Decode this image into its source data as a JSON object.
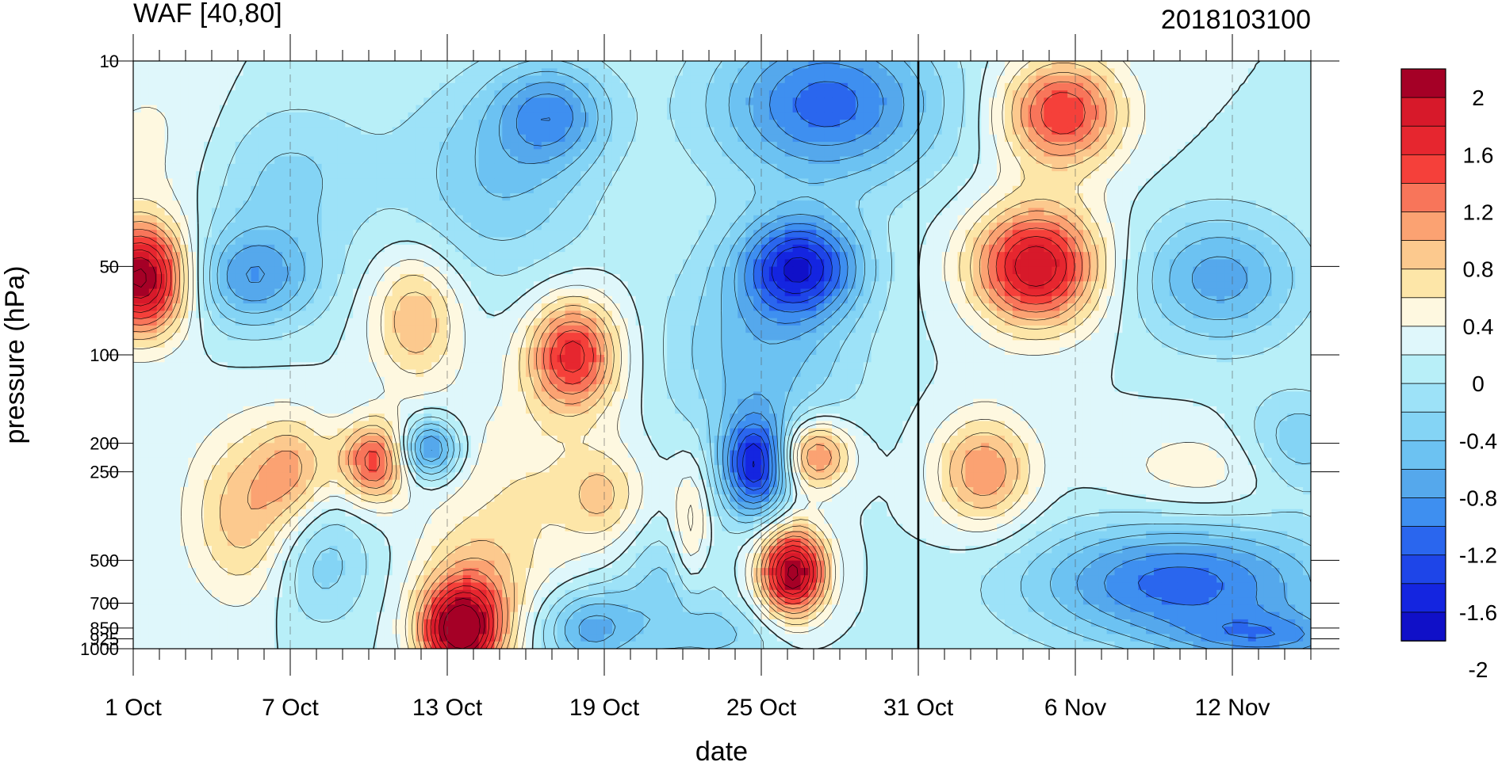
{
  "chart_data": {
    "type": "heatmap",
    "title": "WAF [40,80]",
    "subtitle": "2018103100",
    "xlabel": "date",
    "ylabel": "pressure (hPa)",
    "x_tick_labels": [
      "1 Oct",
      "7 Oct",
      "13 Oct",
      "19 Oct",
      "25 Oct",
      "31 Oct",
      "6 Nov",
      "12 Nov"
    ],
    "x_tick_days": [
      0,
      6,
      12,
      18,
      24,
      30,
      36,
      42
    ],
    "x_range_days": [
      0,
      45
    ],
    "forecast_start_day": 30,
    "y_tick_labels": [
      "10",
      "50",
      "100",
      "200",
      "250",
      "500",
      "700",
      "850",
      "925",
      "1000"
    ],
    "y_levels": [
      10,
      50,
      100,
      200,
      250,
      500,
      700,
      850,
      925,
      1000
    ],
    "y_scale": "log",
    "y_range": [
      1000,
      10
    ],
    "colorbar": {
      "labels": [
        "2",
        "1.6",
        "1.2",
        "0.8",
        "0.4",
        "0",
        "-0.4",
        "-0.8",
        "-1.2",
        "-1.6",
        "-2"
      ],
      "levels": [
        2,
        1.8,
        1.6,
        1.4,
        1.2,
        1.0,
        0.8,
        0.6,
        0.4,
        0.2,
        0,
        -0.2,
        -0.4,
        -0.6,
        -0.8,
        -1.0,
        -1.2,
        -1.4,
        -1.6,
        -1.8,
        -2
      ],
      "colors": [
        "#a50026",
        "#d7192a",
        "#e6262f",
        "#f5403a",
        "#f8755a",
        "#fba272",
        "#fcc98e",
        "#fde6a8",
        "#fef8e0",
        "#dff7fb",
        "#b8eff8",
        "#9de2f8",
        "#84d4f5",
        "#6cc2f2",
        "#55a8ec",
        "#3e8ff0",
        "#2a66ee",
        "#1e45e8",
        "#1425e0",
        "#1010c8"
      ]
    },
    "blobs": [
      {
        "day": 0.3,
        "p": 55,
        "sd": 1.3,
        "sp": 1.1,
        "amp": 2.1
      },
      {
        "day": 1.2,
        "p": 20,
        "sd": 2.5,
        "sp": 1.8,
        "amp": 0.3
      },
      {
        "day": 4.5,
        "p": 55,
        "sd": 1.8,
        "sp": 1.0,
        "amp": -0.95
      },
      {
        "day": 5.5,
        "p": 25,
        "sd": 2.5,
        "sp": 1.6,
        "amp": -0.5
      },
      {
        "day": 4.5,
        "p": 350,
        "sd": 1.6,
        "sp": 1.7,
        "amp": 0.8
      },
      {
        "day": 6.2,
        "p": 240,
        "sd": 1.0,
        "sp": 1.0,
        "amp": 0.6
      },
      {
        "day": 7.0,
        "p": 500,
        "sd": 1.4,
        "sp": 1.3,
        "amp": -0.6
      },
      {
        "day": 9.2,
        "p": 230,
        "sd": 0.9,
        "sp": 0.8,
        "amp": 1.3
      },
      {
        "day": 10.8,
        "p": 75,
        "sd": 1.2,
        "sp": 1.3,
        "amp": 0.8
      },
      {
        "day": 11.3,
        "p": 210,
        "sd": 0.8,
        "sp": 0.6,
        "amp": -1.2
      },
      {
        "day": 12.5,
        "p": 880,
        "sd": 1.1,
        "sp": 0.9,
        "amp": 2.1
      },
      {
        "day": 13.0,
        "p": 600,
        "sd": 1.4,
        "sp": 1.1,
        "amp": 0.6
      },
      {
        "day": 15.0,
        "p": 300,
        "sd": 2.5,
        "sp": 2.0,
        "amp": 0.4
      },
      {
        "day": 14.0,
        "p": 25,
        "sd": 2.5,
        "sp": 2.0,
        "amp": -0.6
      },
      {
        "day": 16.0,
        "p": 15,
        "sd": 1.5,
        "sp": 1.0,
        "amp": -0.9
      },
      {
        "day": 16.8,
        "p": 100,
        "sd": 1.2,
        "sp": 1.1,
        "amp": 1.5
      },
      {
        "day": 18.0,
        "p": 300,
        "sd": 1.0,
        "sp": 0.9,
        "amp": 0.5
      },
      {
        "day": 17.5,
        "p": 850,
        "sd": 1.3,
        "sp": 0.8,
        "amp": -0.9
      },
      {
        "day": 20.5,
        "p": 600,
        "sd": 1.3,
        "sp": 1.2,
        "amp": -0.5
      },
      {
        "day": 21.3,
        "p": 400,
        "sd": 0.5,
        "sp": 1.4,
        "amp": 0.6
      },
      {
        "day": 23.8,
        "p": 240,
        "sd": 0.9,
        "sp": 1.0,
        "amp": -1.7
      },
      {
        "day": 25.2,
        "p": 550,
        "sd": 0.9,
        "sp": 0.9,
        "amp": 2.1
      },
      {
        "day": 26.0,
        "p": 220,
        "sd": 1.0,
        "sp": 0.7,
        "amp": 1.2
      },
      {
        "day": 25.5,
        "p": 50,
        "sd": 1.6,
        "sp": 1.0,
        "amp": -1.6
      },
      {
        "day": 26.5,
        "p": 14,
        "sd": 3.0,
        "sp": 1.6,
        "amp": -1.3
      },
      {
        "day": 24.0,
        "p": 100,
        "sd": 2.5,
        "sp": 2.0,
        "amp": -0.7
      },
      {
        "day": 22.5,
        "p": 900,
        "sd": 2.0,
        "sp": 0.7,
        "amp": -0.4
      },
      {
        "day": 34.5,
        "p": 50,
        "sd": 1.7,
        "sp": 1.2,
        "amp": 1.8
      },
      {
        "day": 35.5,
        "p": 15,
        "sd": 1.6,
        "sp": 1.1,
        "amp": 1.4
      },
      {
        "day": 32.5,
        "p": 250,
        "sd": 1.3,
        "sp": 1.1,
        "amp": 1.0
      },
      {
        "day": 40.0,
        "p": 600,
        "sd": 4.0,
        "sp": 1.2,
        "amp": -1.3
      },
      {
        "day": 43.5,
        "p": 920,
        "sd": 2.5,
        "sp": 0.5,
        "amp": -0.8
      },
      {
        "day": 41.5,
        "p": 55,
        "sd": 2.2,
        "sp": 1.3,
        "amp": -0.9
      },
      {
        "day": 41.0,
        "p": 250,
        "sd": 2.5,
        "sp": 0.9,
        "amp": 0.35
      },
      {
        "day": 44.5,
        "p": 200,
        "sd": 1.5,
        "sp": 1.0,
        "amp": -0.6
      }
    ]
  }
}
